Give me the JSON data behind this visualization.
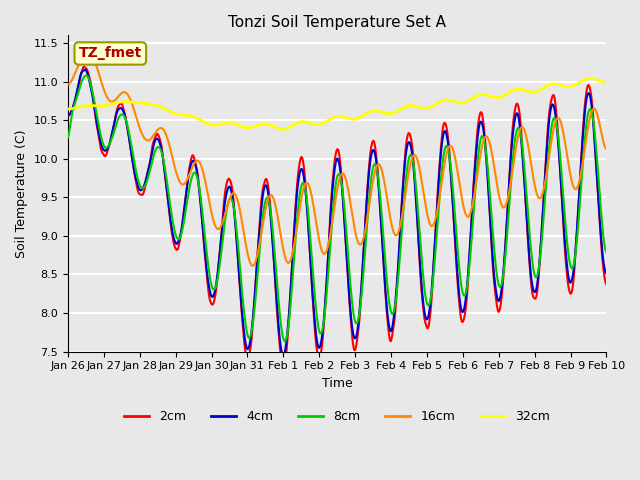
{
  "title": "Tonzi Soil Temperature Set A",
  "xlabel": "Time",
  "ylabel": "Soil Temperature (C)",
  "ylim": [
    7.5,
    11.6
  ],
  "background_color": "#e8e8e8",
  "plot_bg_color": "#e8e8e8",
  "grid_color": "#ffffff",
  "annotation_text": "TZ_fmet",
  "annotation_bg": "#ffffcc",
  "annotation_border": "#999900",
  "annotation_text_color": "#aa0000",
  "legend_entries": [
    "2cm",
    "4cm",
    "8cm",
    "16cm",
    "32cm"
  ],
  "line_colors": [
    "#ff0000",
    "#0000cc",
    "#00cc00",
    "#ff8800",
    "#ffff00"
  ],
  "line_widths": [
    1.5,
    1.5,
    1.5,
    1.5,
    2.0
  ],
  "xtick_labels": [
    "Jan 26",
    "Jan 27",
    "Jan 28",
    "Jan 29",
    "Jan 30",
    "Jan 31",
    "Feb 1",
    "Feb 2",
    "Feb 3",
    "Feb 4",
    "Feb 5",
    "Feb 6",
    "Feb 7",
    "Feb 8",
    "Feb 9",
    "Feb 10"
  ],
  "ytick_values": [
    7.5,
    8.0,
    8.5,
    9.0,
    9.5,
    10.0,
    10.5,
    11.0,
    11.5
  ],
  "n_days": 15,
  "n_points_per_day": 48
}
